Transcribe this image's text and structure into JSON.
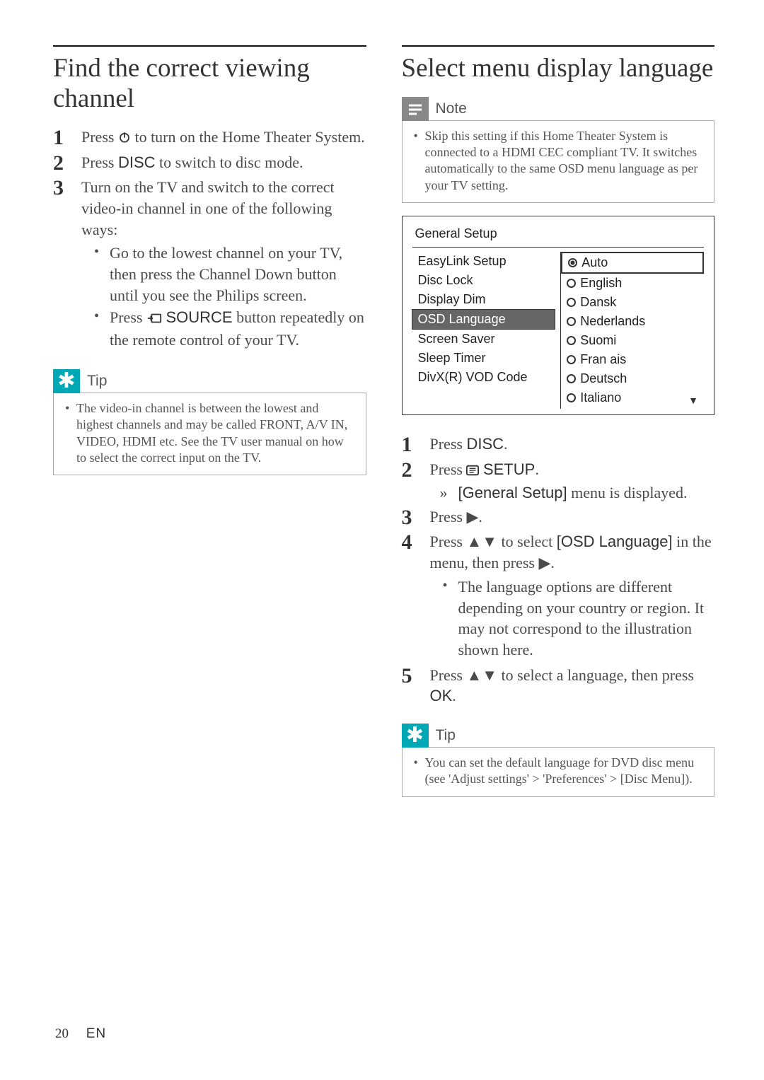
{
  "footer": {
    "page": "20",
    "lang": "EN"
  },
  "left": {
    "title": "Find the correct viewing channel",
    "steps": [
      {
        "n": "1",
        "pre": "Press ",
        "icon": "power",
        "post": " to turn on the Home Theater System."
      },
      {
        "n": "2",
        "parts": [
          "Press ",
          {
            "b": "DISC"
          },
          " to switch to disc mode."
        ]
      },
      {
        "n": "3",
        "text": "Turn on the TV and switch to the correct video-in channel in one of the following ways:",
        "subs": [
          "Go to the lowest channel on your TV, then press the Channel Down button until you see the Philips screen.",
          {
            "parts": [
              "Press ",
              {
                "icon": "source"
              },
              " ",
              {
                "b": "SOURCE"
              },
              " button repeatedly on the remote control of your TV."
            ]
          }
        ]
      }
    ],
    "tip": {
      "label": "Tip",
      "text": "The video-in channel is between the lowest and highest channels and may be called FRONT, A/V IN, VIDEO, HDMI etc. See the TV user manual on how to select the correct input on the TV."
    }
  },
  "right": {
    "title": "Select menu display language",
    "note": {
      "label": "Note",
      "text": "Skip this setting if this Home Theater System is connected to a HDMI CEC compliant TV. It switches automatically to the same OSD menu language as per your TV setting."
    },
    "osd": {
      "title": "General Setup",
      "left_items": [
        "EasyLink Setup",
        "Disc Lock",
        "Display Dim",
        "OSD Language",
        "Screen Saver",
        "Sleep Timer",
        "DivX(R) VOD Code"
      ],
      "selected_left_index": 3,
      "right_items": [
        "Auto",
        "English",
        "Dansk",
        "Nederlands",
        "Suomi",
        "Fran  ais",
        "Deutsch",
        "Italiano"
      ],
      "selected_right_index": 0
    },
    "steps": [
      {
        "n": "1",
        "parts": [
          "Press ",
          {
            "b": "DISC"
          },
          "."
        ]
      },
      {
        "n": "2",
        "parts": [
          "Press ",
          {
            "icon": "setup"
          },
          " ",
          {
            "b": "SETUP"
          },
          "."
        ],
        "result": {
          "parts": [
            {
              "b": "[General Setup]"
            },
            " menu is displayed."
          ]
        }
      },
      {
        "n": "3",
        "parts": [
          "Press ",
          {
            "glyph": "▶"
          },
          "."
        ]
      },
      {
        "n": "4",
        "parts": [
          "Press ",
          {
            "glyph": "▲▼"
          },
          " to select ",
          {
            "b": "[OSD Language]"
          },
          " in the menu, then press ",
          {
            "glyph": "▶"
          },
          "."
        ],
        "subs": [
          "The language options are different depending on your country or region. It may not correspond to the illustration shown here."
        ]
      },
      {
        "n": "5",
        "parts": [
          "Press ",
          {
            "glyph": "▲▼"
          },
          " to select a language, then press ",
          {
            "b": "OK"
          },
          "."
        ]
      }
    ],
    "tip": {
      "label": "Tip",
      "parts": [
        "You can set the default language for DVD disc menu (see 'Adjust settings' > 'Preferences' > ",
        {
          "b": "[Disc Menu]"
        },
        ")."
      ]
    }
  },
  "colors": {
    "tip_bg": "#00a7b5",
    "note_bg": "#888888",
    "text": "#333333"
  }
}
